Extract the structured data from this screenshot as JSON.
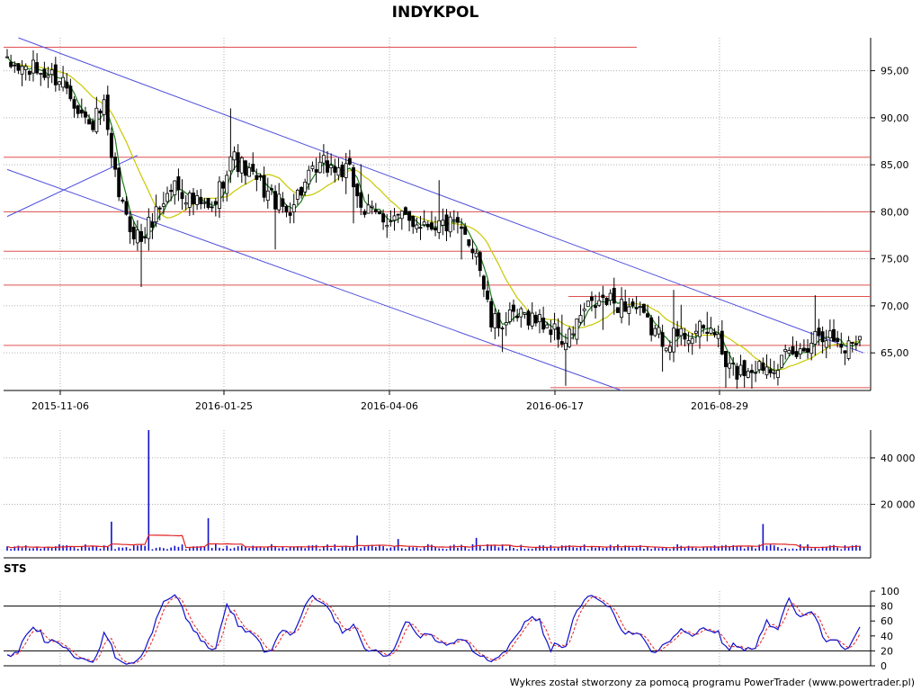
{
  "title": "INDYKPOL",
  "footer": "Wykres został stworzony za pomocą programu PowerTrader (www.powertrader.pl)",
  "colors": {
    "candle": "#000000",
    "sma_short": "#1a7a1a",
    "sma_long": "#c8c800",
    "resistance": "#e05050",
    "trend": "#5050dd",
    "volume_bar": "#1010cc",
    "volume_avg": "#e02020",
    "sto_k": "#1010cc",
    "sto_d": "#e02020"
  },
  "chart_data": [
    {
      "type": "candlestick",
      "name": "price",
      "x_ticks": [
        "2015-11-06",
        "2016-01-25",
        "2016-04-06",
        "2016-06-17",
        "2016-08-29"
      ],
      "y_ticks": [
        "65,00",
        "70,00",
        "75,00",
        "80,00",
        "85,00",
        "90,00",
        "95,00"
      ],
      "ylim": [
        61,
        98.5
      ],
      "bars": 230,
      "close_anchors": [
        [
          0,
          95.5
        ],
        [
          8,
          95
        ],
        [
          15,
          94
        ],
        [
          18,
          92
        ],
        [
          22,
          89
        ],
        [
          26,
          91
        ],
        [
          28,
          85
        ],
        [
          32,
          79
        ],
        [
          36,
          77
        ],
        [
          40,
          80
        ],
        [
          45,
          83
        ],
        [
          50,
          81
        ],
        [
          55,
          80
        ],
        [
          60,
          86
        ],
        [
          65,
          84
        ],
        [
          70,
          82
        ],
        [
          75,
          80
        ],
        [
          80,
          83
        ],
        [
          85,
          85
        ],
        [
          92,
          84
        ],
        [
          96,
          80
        ],
        [
          100,
          79.5
        ],
        [
          110,
          79
        ],
        [
          120,
          78.5
        ],
        [
          126,
          76
        ],
        [
          130,
          68
        ],
        [
          135,
          68.5
        ],
        [
          140,
          69
        ],
        [
          145,
          68
        ],
        [
          150,
          66
        ],
        [
          155,
          69.5
        ],
        [
          160,
          70.5
        ],
        [
          168,
          70
        ],
        [
          172,
          68
        ],
        [
          176,
          66.5
        ],
        [
          182,
          67
        ],
        [
          190,
          67.5
        ],
        [
          193,
          63.5
        ],
        [
          196,
          63
        ],
        [
          200,
          63.5
        ],
        [
          207,
          64
        ],
        [
          213,
          65
        ],
        [
          218,
          67.5
        ],
        [
          222,
          66.5
        ],
        [
          225,
          65.5
        ],
        [
          229,
          67
        ]
      ],
      "horizontal_levels": [
        97.5,
        85.8,
        80.0,
        75.8,
        72.2,
        71.0,
        65.8,
        61.3
      ],
      "trend_lines": [
        {
          "from": [
            3,
            98.5
          ],
          "to": [
            230,
            65
          ]
        },
        {
          "from": [
            0,
            84.5
          ],
          "to": [
            165,
            61
          ]
        },
        {
          "from": [
            0,
            79.5
          ],
          "to": [
            35,
            86
          ]
        }
      ],
      "sma": [
        "short",
        "long"
      ]
    },
    {
      "type": "bar",
      "name": "volume",
      "y_ticks": [
        "20 000",
        "40 000"
      ],
      "ylim": [
        0,
        52000
      ],
      "spikes": [
        [
          28,
          12500
        ],
        [
          38,
          52000
        ],
        [
          54,
          14000
        ],
        [
          94,
          6500
        ],
        [
          105,
          5000
        ],
        [
          126,
          5500
        ],
        [
          203,
          11500
        ]
      ]
    },
    {
      "type": "line",
      "name": "STS",
      "label": "STS",
      "y_ticks": [
        "0",
        "20",
        "40",
        "60",
        "80",
        "100"
      ],
      "ylim": [
        0,
        100
      ],
      "reference_lines": [
        20,
        80
      ],
      "series": [
        "%K",
        "%D"
      ]
    }
  ]
}
